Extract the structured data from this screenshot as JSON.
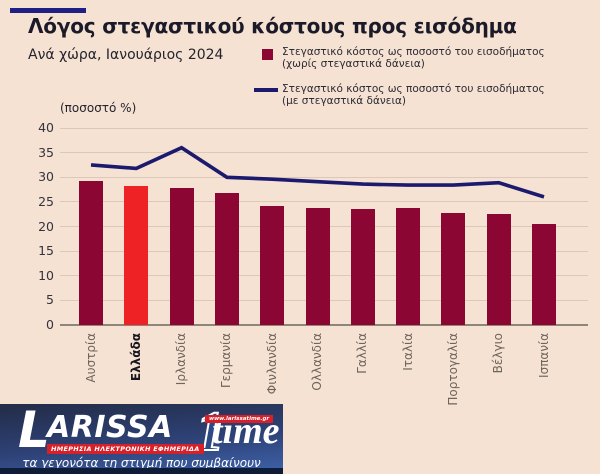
{
  "header": {
    "title": "Λόγος στεγαστικού κόστους προς εισόδημα",
    "subtitle": "Ανά χώρα, Ιανουάριος 2024"
  },
  "legend": [
    {
      "swatch": "square",
      "color": "#8c0633",
      "label_line1": "Στεγαστικό κόστος ως ποσοστό του εισοδήματος",
      "label_line2": "(χωρίς στεγαστικά δάνεια)"
    },
    {
      "swatch": "line",
      "color": "#1c1a6e",
      "label_line1": "Στεγαστικό κόστος ως ποσοστό του εισοδήματος",
      "label_line2": "(με στεγαστικά δάνεια)"
    }
  ],
  "chart_data": {
    "type": "bar",
    "unit_label": "(ποσοστό %)",
    "categories": [
      "Αυστρία",
      "Ελλάδα",
      "Ιρλανδία",
      "Γερμανία",
      "Φινλανδία",
      "Ολλανδία",
      "Γαλλία",
      "Ιταλία",
      "Πορτογαλία",
      "Βέλγιο",
      "Ισπανία"
    ],
    "highlight_category": "Ελλάδα",
    "series": [
      {
        "name": "Στεγαστικό κόστος ως ποσοστό του εισοδήματος (χωρίς στεγαστικά δάνεια)",
        "type": "bar",
        "values": [
          29.3,
          28.2,
          27.9,
          26.8,
          24.2,
          23.7,
          23.6,
          23.7,
          22.8,
          22.5,
          20.5
        ]
      },
      {
        "name": "Στεγαστικό κόστος ως ποσοστό του εισοδήματος (με στεγαστικά δάνεια)",
        "type": "line",
        "values": [
          32.5,
          31.8,
          36.0,
          30.0,
          29.6,
          29.1,
          28.6,
          28.4,
          28.4,
          28.9,
          26.0
        ]
      }
    ],
    "ylim": [
      0,
      40
    ],
    "ytick_step": 5,
    "grid": true,
    "legend_position": "top-right",
    "colors": {
      "bar": "#8c0633",
      "bar_highlight": "#ee2124",
      "line": "#1c1a6e",
      "background": "#f6e2d2",
      "gridline": "#dcc8b8"
    }
  },
  "footer_logo": {
    "main": "L",
    "main_rest": "ARISSA",
    "numeral": "1",
    "suffix": "time",
    "website": "www.larissatime.gr",
    "badge": "ΗΜΕΡΗΣΙΑ ΗΛΕΚΤΡΟΝΙΚΗ ΕΦΗΜΕΡΙΔΑ",
    "tagline": "τα γεγονότα τη στιγμή που συμβαίνουν"
  }
}
